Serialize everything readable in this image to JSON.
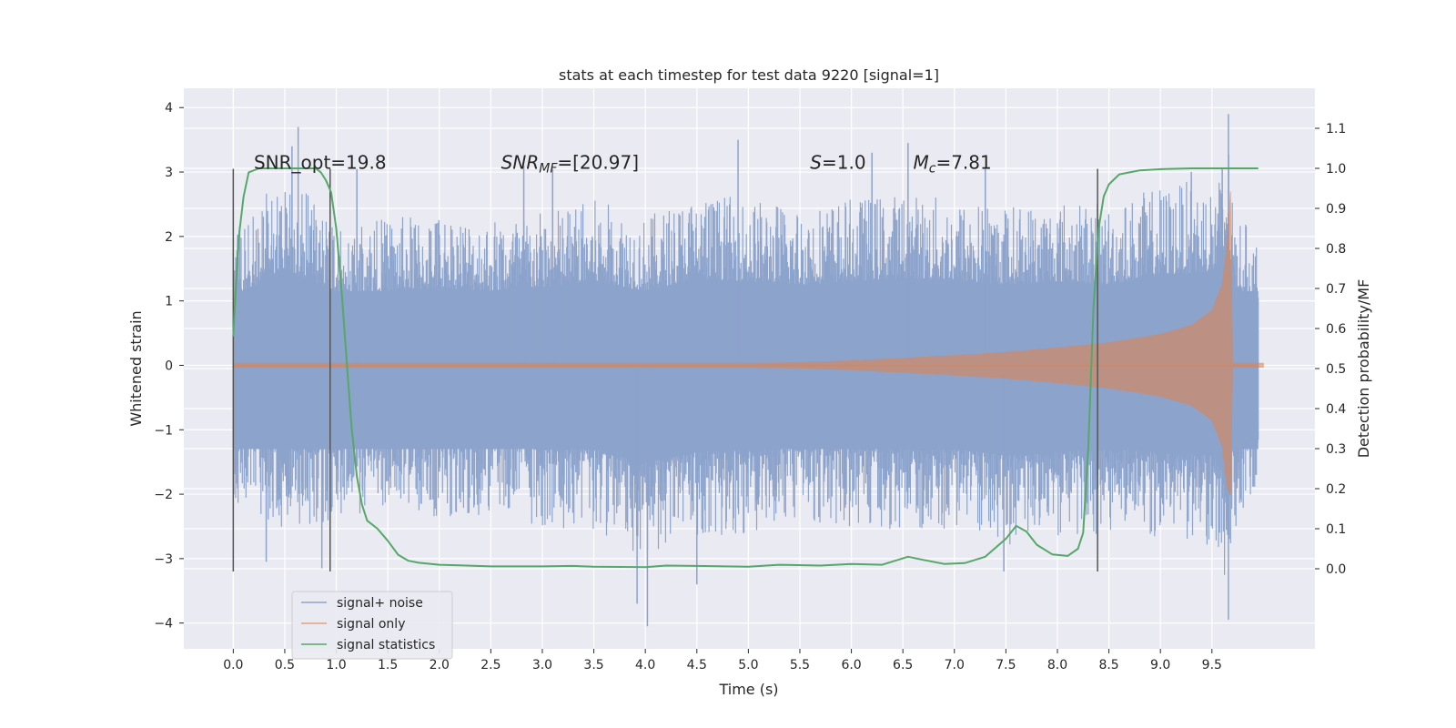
{
  "chart_data": {
    "type": "line",
    "title": "stats at each timestep for test data 9220 [signal=1]",
    "xlabel": "Time (s)",
    "ylabel_left": "Whitened strain",
    "ylabel_right": "Detection probability/MF",
    "xlim": [
      -0.48,
      10.5
    ],
    "ylim_left": [
      -4.4,
      4.3
    ],
    "ylim_right": [
      -0.2,
      1.2
    ],
    "x_ticks": [
      0.0,
      0.5,
      1.0,
      1.5,
      2.0,
      2.5,
      3.0,
      3.5,
      4.0,
      4.5,
      5.0,
      5.5,
      6.0,
      6.5,
      7.0,
      7.5,
      8.0,
      8.5,
      9.0,
      9.5
    ],
    "x_tick_labels": [
      "0.0",
      "0.5",
      "1.0",
      "1.5",
      "2.0",
      "2.5",
      "3.0",
      "3.5",
      "4.0",
      "4.5",
      "5.0",
      "5.5",
      "6.0",
      "6.5",
      "7.0",
      "7.5",
      "8.0",
      "8.5",
      "9.0",
      "9.5"
    ],
    "y_left_ticks": [
      -4,
      -3,
      -2,
      -1,
      0,
      1,
      2,
      3,
      4
    ],
    "y_left_tick_labels": [
      "−4",
      "−3",
      "−2",
      "−1",
      "0",
      "1",
      "2",
      "3",
      "4"
    ],
    "y_right_ticks": [
      0.0,
      0.1,
      0.2,
      0.3,
      0.4,
      0.5,
      0.6,
      0.7,
      0.8,
      0.9,
      1.0,
      1.1
    ],
    "y_right_tick_labels": [
      "0.0",
      "0.1",
      "0.2",
      "0.3",
      "0.4",
      "0.5",
      "0.6",
      "0.7",
      "0.8",
      "0.9",
      "1.0",
      "1.1"
    ],
    "grid": true,
    "legend_position": "lower-left",
    "annotations": [
      {
        "parts": [
          {
            "t": "SNR_opt=19.8",
            "i": false
          }
        ],
        "x": 0.2,
        "y": 3.05
      },
      {
        "parts": [
          {
            "t": "SNR",
            "i": true
          },
          {
            "t": "MF",
            "i": true,
            "sub": true
          },
          {
            "t": "=[20.97]",
            "i": false
          }
        ],
        "x": 2.6,
        "y": 3.05
      },
      {
        "parts": [
          {
            "t": "S",
            "i": true
          },
          {
            "t": "=1.0",
            "i": false
          }
        ],
        "x": 5.6,
        "y": 3.05
      },
      {
        "parts": [
          {
            "t": "M",
            "i": true
          },
          {
            "t": "c",
            "i": true,
            "sub": true
          },
          {
            "t": "=7.81",
            "i": false
          }
        ],
        "x": 6.6,
        "y": 3.05
      }
    ],
    "vertical_lines": [
      0.0,
      0.94,
      8.39
    ],
    "vline_ylim": [
      -3.2,
      3.05
    ],
    "series": [
      {
        "name": "signal+ noise",
        "color": "#8ca3cc",
        "axis": "left",
        "envelope": {
          "x": [
            0.0,
            0.5,
            1.0,
            1.5,
            2.0,
            2.5,
            3.0,
            3.5,
            4.0,
            4.5,
            5.0,
            5.5,
            6.0,
            6.5,
            7.0,
            7.5,
            8.0,
            8.5,
            9.0,
            9.5,
            9.6,
            9.65,
            9.7,
            10.0
          ],
          "upper": [
            2.1,
            3.0,
            2.2,
            2.3,
            2.4,
            2.3,
            2.4,
            2.6,
            2.3,
            2.7,
            2.6,
            2.5,
            2.6,
            2.7,
            2.6,
            2.5,
            2.6,
            2.5,
            2.8,
            2.9,
            3.0,
            3.9,
            2.5,
            1.8
          ],
          "lower": [
            -2.1,
            -2.6,
            -2.4,
            -2.2,
            -2.4,
            -2.3,
            -2.5,
            -2.6,
            -3.0,
            -2.7,
            -2.6,
            -2.5,
            -2.5,
            -2.6,
            -2.6,
            -2.8,
            -2.7,
            -2.6,
            -2.7,
            -2.8,
            -3.0,
            -3.95,
            -2.6,
            -1.9
          ]
        },
        "spikes": [
          {
            "x": 0.63,
            "y": 3.7
          },
          {
            "x": 0.57,
            "y": 3.4
          },
          {
            "x": 0.32,
            "y": -3.05
          },
          {
            "x": 0.86,
            "y": -3.15
          },
          {
            "x": 1.2,
            "y": 3.05
          },
          {
            "x": 2.82,
            "y": 3.1
          },
          {
            "x": 3.1,
            "y": 3.05
          },
          {
            "x": 3.92,
            "y": -3.7
          },
          {
            "x": 4.02,
            "y": -4.05
          },
          {
            "x": 4.5,
            "y": -3.4
          },
          {
            "x": 4.9,
            "y": 3.5
          },
          {
            "x": 6.2,
            "y": 3.3
          },
          {
            "x": 6.55,
            "y": 3.45
          },
          {
            "x": 7.3,
            "y": 3.05
          },
          {
            "x": 7.48,
            "y": -3.2
          },
          {
            "x": 9.6,
            "y": 3.05
          },
          {
            "x": 9.66,
            "y": 3.9
          },
          {
            "x": 9.66,
            "y": -3.95
          },
          {
            "x": 9.3,
            "y": 3.0
          }
        ]
      },
      {
        "name": "signal only",
        "color": "#dd8452",
        "axis": "left",
        "envelope": {
          "x": [
            0.0,
            5.0,
            5.5,
            6.0,
            6.5,
            7.0,
            7.5,
            8.0,
            8.5,
            9.0,
            9.3,
            9.5,
            9.6,
            9.65,
            9.68,
            9.7,
            10.0
          ],
          "upper": [
            0.03,
            0.03,
            0.04,
            0.07,
            0.11,
            0.15,
            0.2,
            0.27,
            0.35,
            0.48,
            0.62,
            0.85,
            1.25,
            1.9,
            2.7,
            0.03,
            0.03
          ],
          "lower": [
            -0.03,
            -0.03,
            -0.04,
            -0.07,
            -0.11,
            -0.15,
            -0.2,
            -0.27,
            -0.35,
            -0.48,
            -0.62,
            -0.85,
            -1.25,
            -1.9,
            -2.0,
            -0.03,
            -0.03
          ]
        }
      },
      {
        "name": "signal statistics",
        "color": "#55a868",
        "axis": "right",
        "x": [
          0.0,
          0.05,
          0.1,
          0.15,
          0.25,
          0.4,
          0.6,
          0.8,
          0.85,
          0.9,
          0.95,
          1.0,
          1.05,
          1.1,
          1.15,
          1.2,
          1.25,
          1.3,
          1.35,
          1.4,
          1.5,
          1.6,
          1.7,
          1.8,
          2.0,
          2.5,
          3.0,
          3.3,
          3.5,
          4.0,
          4.2,
          4.5,
          5.0,
          5.3,
          5.7,
          6.0,
          6.3,
          6.55,
          6.7,
          6.9,
          7.1,
          7.3,
          7.5,
          7.6,
          7.7,
          7.8,
          7.95,
          8.1,
          8.2,
          8.25,
          8.3,
          8.35,
          8.4,
          8.45,
          8.5,
          8.6,
          8.8,
          9.0,
          9.3,
          9.6,
          9.95
        ],
        "values": [
          0.58,
          0.82,
          0.93,
          0.99,
          1.0,
          1.0,
          1.0,
          1.0,
          0.99,
          0.97,
          0.94,
          0.85,
          0.7,
          0.52,
          0.35,
          0.23,
          0.16,
          0.12,
          0.11,
          0.1,
          0.07,
          0.035,
          0.02,
          0.015,
          0.01,
          0.006,
          0.006,
          0.007,
          0.005,
          0.004,
          0.008,
          0.007,
          0.005,
          0.01,
          0.008,
          0.012,
          0.01,
          0.03,
          0.022,
          0.012,
          0.014,
          0.03,
          0.075,
          0.107,
          0.093,
          0.06,
          0.036,
          0.032,
          0.05,
          0.09,
          0.3,
          0.65,
          0.85,
          0.93,
          0.96,
          0.985,
          0.995,
          0.998,
          1.0,
          1.0,
          1.0
        ]
      }
    ]
  }
}
